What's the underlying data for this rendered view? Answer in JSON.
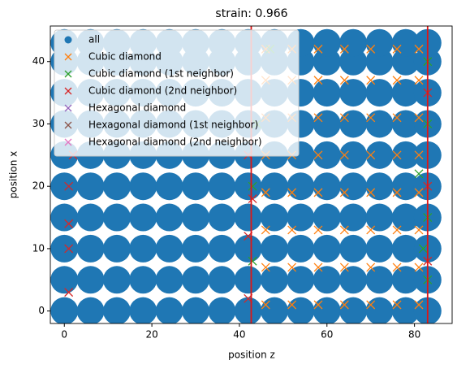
{
  "chart_data": {
    "type": "scatter",
    "title": "strain: 0.966",
    "xlabel": "position z",
    "ylabel": "position x",
    "xlim": [
      -3.2,
      88.6
    ],
    "ylim": [
      -2,
      45.7
    ],
    "xticks": [
      0,
      20,
      40,
      60,
      80
    ],
    "yticks": [
      0,
      10,
      20,
      30,
      40
    ],
    "legend": "upper left",
    "vlines": [
      42.7,
      83
    ],
    "vline_color": "#e01515",
    "series": [
      {
        "name": "all",
        "color": "#1f77b4",
        "marker": "o",
        "x": [
          0,
          6,
          12,
          18,
          24,
          30,
          36,
          42,
          48,
          54,
          60,
          66,
          72,
          78,
          83,
          0,
          6,
          12,
          18,
          24,
          30,
          36,
          42,
          48,
          54,
          60,
          66,
          72,
          78,
          83,
          0,
          6,
          12,
          18,
          24,
          30,
          36,
          42,
          48,
          54,
          60,
          66,
          72,
          78,
          83,
          0,
          6,
          12,
          18,
          24,
          30,
          36,
          42,
          48,
          54,
          60,
          66,
          72,
          78,
          83,
          0,
          6,
          12,
          18,
          24,
          30,
          36,
          42,
          48,
          54,
          60,
          66,
          72,
          78,
          83,
          0,
          6,
          12,
          18,
          24,
          30,
          36,
          42,
          48,
          54,
          60,
          66,
          72,
          78,
          83,
          0,
          6,
          12,
          18,
          24,
          30,
          36,
          42,
          48,
          54,
          60,
          66,
          72,
          78,
          83,
          0,
          6,
          12,
          18,
          24,
          30,
          36,
          42,
          48,
          54,
          60,
          66,
          72,
          78,
          83,
          0,
          6,
          12,
          18,
          24,
          30,
          36,
          42,
          48,
          54,
          60,
          66,
          72,
          78,
          83,
          0,
          6,
          12,
          18,
          24,
          30,
          36,
          42,
          48,
          54,
          60,
          66,
          72,
          78,
          83
        ],
        "values": [
          0,
          0,
          0,
          0,
          0,
          0,
          0,
          0,
          0,
          0,
          0,
          0,
          0,
          0,
          0,
          5,
          5,
          5,
          5,
          5,
          5,
          5,
          5,
          5,
          5,
          5,
          5,
          5,
          5,
          5,
          10,
          10,
          10,
          10,
          10,
          10,
          10,
          10,
          10,
          10,
          10,
          10,
          10,
          10,
          10,
          15,
          15,
          15,
          15,
          15,
          15,
          15,
          15,
          15,
          15,
          15,
          15,
          15,
          15,
          15,
          20,
          20,
          20,
          20,
          20,
          20,
          20,
          20,
          20,
          20,
          20,
          20,
          20,
          20,
          20,
          25,
          25,
          25,
          25,
          25,
          25,
          25,
          25,
          25,
          25,
          25,
          25,
          25,
          25,
          25,
          30,
          30,
          30,
          30,
          30,
          30,
          30,
          30,
          30,
          30,
          30,
          30,
          30,
          30,
          30,
          35,
          35,
          35,
          35,
          35,
          35,
          35,
          35,
          35,
          35,
          35,
          35,
          35,
          35,
          35,
          40,
          40,
          40,
          40,
          40,
          40,
          40,
          40,
          40,
          40,
          40,
          40,
          40,
          40,
          40,
          43,
          43,
          43,
          43,
          43,
          43,
          43,
          43,
          43,
          43,
          43,
          43,
          43,
          43,
          43
        ]
      },
      {
        "name": "Cubic diamond",
        "color": "#ff7f0e",
        "marker": "x",
        "x": [
          46,
          52,
          58,
          64,
          70,
          76,
          81,
          46,
          52,
          58,
          64,
          70,
          76,
          81,
          46,
          52,
          58,
          64,
          70,
          76,
          81,
          46,
          52,
          58,
          64,
          70,
          76,
          81,
          46,
          52,
          58,
          64,
          70,
          76,
          81,
          46,
          52,
          58,
          64,
          70,
          76,
          81,
          46,
          52,
          58,
          64,
          70,
          76,
          81,
          46,
          52,
          58,
          64,
          70,
          76,
          81
        ],
        "values": [
          1,
          1,
          1,
          1,
          1,
          1,
          1,
          7,
          7,
          7,
          7,
          7,
          7,
          7,
          13,
          13,
          13,
          13,
          13,
          13,
          13,
          19,
          19,
          19,
          19,
          19,
          19,
          19,
          25,
          25,
          25,
          25,
          25,
          25,
          25,
          31,
          31,
          31,
          31,
          31,
          31,
          31,
          37,
          37,
          37,
          37,
          37,
          37,
          37,
          42,
          42,
          42,
          42,
          42,
          42,
          42
        ]
      },
      {
        "name": "Cubic diamond (1st neighbor)",
        "color": "#2ca02c",
        "marker": "x",
        "x": [
          43,
          43,
          83,
          83,
          83,
          83,
          47,
          44,
          81,
          82
        ],
        "values": [
          20,
          8,
          40,
          30,
          15,
          5,
          42,
          30,
          22,
          10
        ]
      },
      {
        "name": "Cubic diamond (2nd neighbor)",
        "color": "#d62728",
        "marker": "x",
        "x": [
          1,
          1,
          1,
          1,
          2,
          42,
          42,
          43,
          42,
          83,
          83,
          83
        ],
        "values": [
          20,
          10,
          3,
          14,
          25,
          2,
          12,
          18,
          25,
          20,
          35,
          8
        ]
      },
      {
        "name": "Hexagonal diamond",
        "color": "#9467bd",
        "marker": "x",
        "x": [],
        "values": []
      },
      {
        "name": "Hexagonal diamond (1st neighbor)",
        "color": "#8c564b",
        "marker": "x",
        "x": [],
        "values": []
      },
      {
        "name": "Hexagonal diamond (2nd neighbor)",
        "color": "#e377c2",
        "marker": "x",
        "x": [],
        "values": []
      }
    ]
  }
}
